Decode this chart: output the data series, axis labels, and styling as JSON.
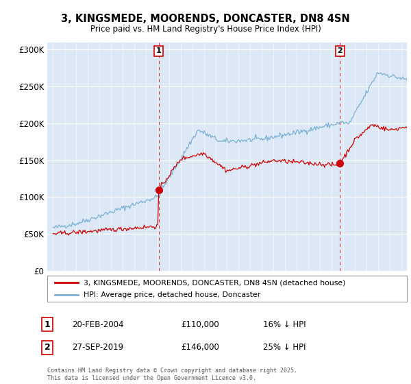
{
  "title_line1": "3, KINGSMEDE, MOORENDS, DONCASTER, DN8 4SN",
  "title_line2": "Price paid vs. HM Land Registry's House Price Index (HPI)",
  "plot_bg_color": "#dce8f5",
  "hpi_color": "#7ab0d4",
  "price_color": "#cc0000",
  "ylim": [
    0,
    310000
  ],
  "yticks": [
    0,
    50000,
    100000,
    150000,
    200000,
    250000,
    300000
  ],
  "ytick_labels": [
    "£0",
    "£50K",
    "£100K",
    "£150K",
    "£200K",
    "£250K",
    "£300K"
  ],
  "xlim": [
    1994.5,
    2025.5
  ],
  "legend_label_price": "3, KINGSMEDE, MOORENDS, DONCASTER, DN8 4SN (detached house)",
  "legend_label_hpi": "HPI: Average price, detached house, Doncaster",
  "annotation1_label": "1",
  "annotation1_date": "20-FEB-2004",
  "annotation1_price": "£110,000",
  "annotation1_hpi": "16% ↓ HPI",
  "annotation2_label": "2",
  "annotation2_date": "27-SEP-2019",
  "annotation2_price": "£146,000",
  "annotation2_hpi": "25% ↓ HPI",
  "sale1_year": 2004.12,
  "sale1_price": 110000,
  "sale2_year": 2019.75,
  "sale2_price": 146000,
  "footer": "Contains HM Land Registry data © Crown copyright and database right 2025.\nThis data is licensed under the Open Government Licence v3.0."
}
